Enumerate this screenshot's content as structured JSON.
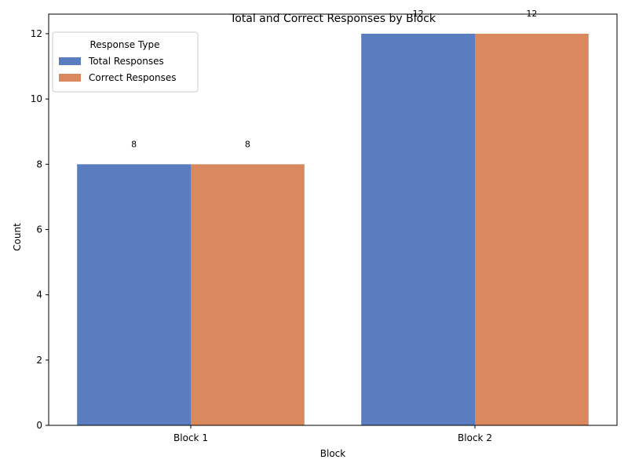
{
  "chart_data": {
    "type": "bar",
    "title": "Total and Correct Responses by Block",
    "xlabel": "Block",
    "ylabel": "Count",
    "categories": [
      "Block 1",
      "Block 2"
    ],
    "series": [
      {
        "name": "Total Responses",
        "values": [
          8,
          12
        ],
        "color": "#5a7dc0"
      },
      {
        "name": "Correct Responses",
        "values": [
          8,
          12
        ],
        "color": "#d9895d"
      }
    ],
    "ylim": [
      0,
      12.6
    ],
    "yticks": [
      0,
      2,
      4,
      6,
      8,
      10,
      12
    ],
    "grid": false,
    "legend": {
      "title": "Response Type",
      "placement": "top-left"
    },
    "data_labels": true
  }
}
